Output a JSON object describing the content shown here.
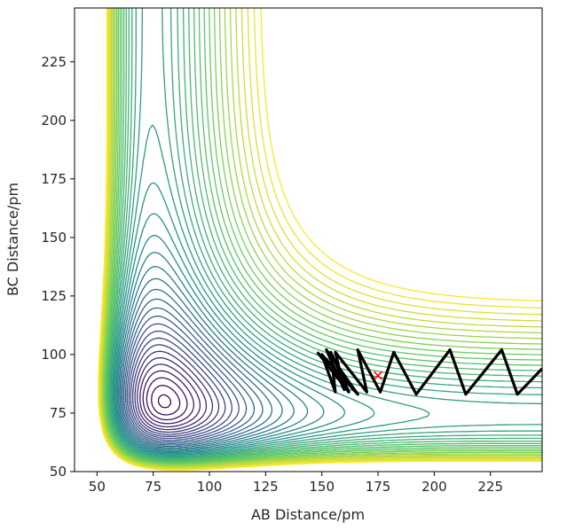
{
  "chart_data": {
    "type": "contour",
    "title": "",
    "xlabel": "AB Distance/pm",
    "ylabel": "BC Distance/pm",
    "xlim": [
      40,
      248
    ],
    "ylim": [
      50,
      248
    ],
    "x_ticks": [
      50,
      75,
      100,
      125,
      150,
      175,
      200,
      225
    ],
    "y_ticks": [
      50,
      75,
      100,
      125,
      150,
      175,
      200,
      225
    ],
    "grid": false,
    "colormap": [
      "#440154",
      "#3b528b",
      "#21918c",
      "#5ec962",
      "#fde725"
    ],
    "contour_levels": 40,
    "trajectory_color": "#000000",
    "trajectory": [
      [
        148,
        101
      ],
      [
        162,
        84
      ],
      [
        154,
        101
      ],
      [
        156,
        84
      ],
      [
        150,
        100
      ],
      [
        166,
        83
      ],
      [
        152,
        102
      ],
      [
        160,
        85
      ],
      [
        156,
        101
      ],
      [
        170,
        84
      ],
      [
        166,
        102
      ],
      [
        176,
        84
      ],
      [
        182,
        101
      ],
      [
        192,
        83
      ],
      [
        207,
        102
      ],
      [
        214,
        83
      ],
      [
        230,
        102
      ],
      [
        237,
        83
      ],
      [
        248,
        94
      ]
    ],
    "marker": {
      "x": 175,
      "y": 91,
      "symbol": "x",
      "color": "#ff0000"
    }
  }
}
